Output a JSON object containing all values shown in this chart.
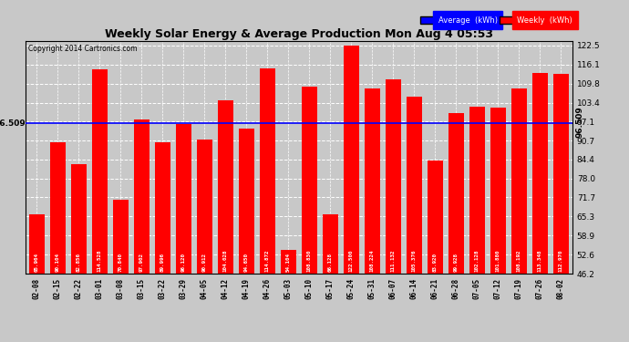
{
  "title": "Weekly Solar Energy & Average Production Mon Aug 4 05:53",
  "copyright": "Copyright 2014 Cartronics.com",
  "average_value": 96.509,
  "bar_color": "#ff0000",
  "average_line_color": "#0000ff",
  "background_color": "#c8c8c8",
  "plot_bg_color": "#c8c8c8",
  "categories": [
    "02-08",
    "02-15",
    "02-22",
    "03-01",
    "03-08",
    "03-15",
    "03-22",
    "03-29",
    "04-05",
    "04-12",
    "04-19",
    "04-26",
    "05-03",
    "05-10",
    "05-17",
    "05-24",
    "05-31",
    "06-07",
    "06-14",
    "06-21",
    "06-28",
    "07-05",
    "07-12",
    "07-19",
    "07-26",
    "08-02"
  ],
  "values": [
    65.964,
    90.104,
    82.856,
    114.528,
    70.84,
    97.902,
    89.996,
    96.12,
    90.912,
    104.028,
    94.65,
    114.872,
    54.104,
    108.83,
    66.128,
    122.5,
    108.224,
    111.132,
    105.376,
    83.92,
    99.928,
    102.128,
    101.88,
    108.192,
    113.348,
    112.97
  ],
  "ylim_min": 46.2,
  "ylim_max": 124.0,
  "yticks": [
    46.2,
    52.6,
    58.9,
    65.3,
    71.7,
    78.0,
    84.4,
    90.7,
    97.1,
    103.4,
    109.8,
    116.1,
    122.5
  ],
  "grid_color": "#ffffff",
  "text_color": "#000000",
  "legend_avg_bg": "#0000ff",
  "legend_weekly_bg": "#ff0000",
  "bar_labels": [
    "65.964",
    "90.104",
    "82.856",
    "114.528",
    "70.840",
    "97.902",
    "89.996",
    "96.120",
    "90.912",
    "104.028",
    "94.650",
    "114.872",
    "54.104",
    "108.830",
    "66.128",
    "122.500",
    "108.224",
    "111.132",
    "105.376",
    "83.920",
    "99.928",
    "102.128",
    "101.880",
    "108.192",
    "113.348",
    "112.970"
  ]
}
